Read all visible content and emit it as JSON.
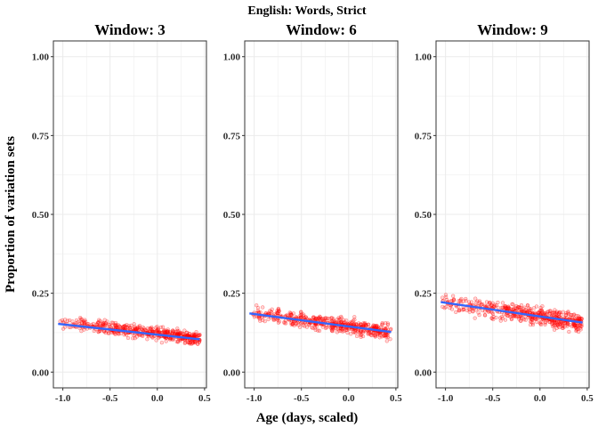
{
  "title": "English: Words, Strict",
  "xlabel": "Age (days, scaled)",
  "ylabel": "Proportion of variation sets",
  "colors": {
    "points": "#ff0000",
    "line": "#3366ff",
    "grid": "#ebebeb",
    "border": "#333333"
  },
  "chart_data": [
    {
      "type": "scatter",
      "panel_label": "Window: 3",
      "xlim": [
        -1.1,
        0.52
      ],
      "ylim": [
        -0.05,
        1.05
      ],
      "x_ticks": [
        -1.0,
        -0.5,
        0.0,
        0.5
      ],
      "x_tick_labels": [
        "-1.0",
        "-0.5",
        "0.0",
        "0.5"
      ],
      "y_ticks": [
        0.0,
        0.25,
        0.5,
        0.75,
        1.0
      ],
      "y_tick_labels": [
        "0.00",
        "0.25",
        "0.50",
        "0.75",
        "1.00"
      ],
      "grid": true,
      "points": {
        "x_range": [
          -1.05,
          0.45
        ],
        "y_at_min_x": 0.16,
        "y_at_max_x": 0.105,
        "spread": 0.018
      },
      "trend_line": {
        "x": [
          -1.05,
          0.45
        ],
        "y": [
          0.153,
          0.104
        ]
      }
    },
    {
      "type": "scatter",
      "panel_label": "Window: 6",
      "xlim": [
        -1.1,
        0.52
      ],
      "ylim": [
        -0.05,
        1.05
      ],
      "x_ticks": [
        -1.0,
        -0.5,
        0.0,
        0.5
      ],
      "x_tick_labels": [
        "-1.0",
        "-0.5",
        "0.0",
        "0.5"
      ],
      "y_ticks": [
        0.0,
        0.25,
        0.5,
        0.75,
        1.0
      ],
      "y_tick_labels": [
        "0.00",
        "0.25",
        "0.50",
        "0.75",
        "1.00"
      ],
      "grid": true,
      "points": {
        "x_range": [
          -1.05,
          0.45
        ],
        "y_at_min_x": 0.19,
        "y_at_max_x": 0.125,
        "spread": 0.022
      },
      "trend_line": {
        "x": [
          -1.05,
          0.45
        ],
        "y": [
          0.186,
          0.127
        ]
      }
    },
    {
      "type": "scatter",
      "panel_label": "Window: 9",
      "xlim": [
        -1.1,
        0.52
      ],
      "ylim": [
        -0.05,
        1.05
      ],
      "x_ticks": [
        -1.0,
        -0.5,
        0.0,
        0.5
      ],
      "x_tick_labels": [
        "-1.0",
        "-0.5",
        "0.0",
        "0.5"
      ],
      "y_ticks": [
        0.0,
        0.25,
        0.5,
        0.75,
        1.0
      ],
      "y_tick_labels": [
        "0.00",
        "0.25",
        "0.50",
        "0.75",
        "1.00"
      ],
      "grid": true,
      "points": {
        "x_range": [
          -1.05,
          0.45
        ],
        "y_at_min_x": 0.225,
        "y_at_max_x": 0.155,
        "spread": 0.026
      },
      "trend_line": {
        "x": [
          -1.05,
          0.45
        ],
        "y": [
          0.222,
          0.157
        ]
      }
    }
  ]
}
